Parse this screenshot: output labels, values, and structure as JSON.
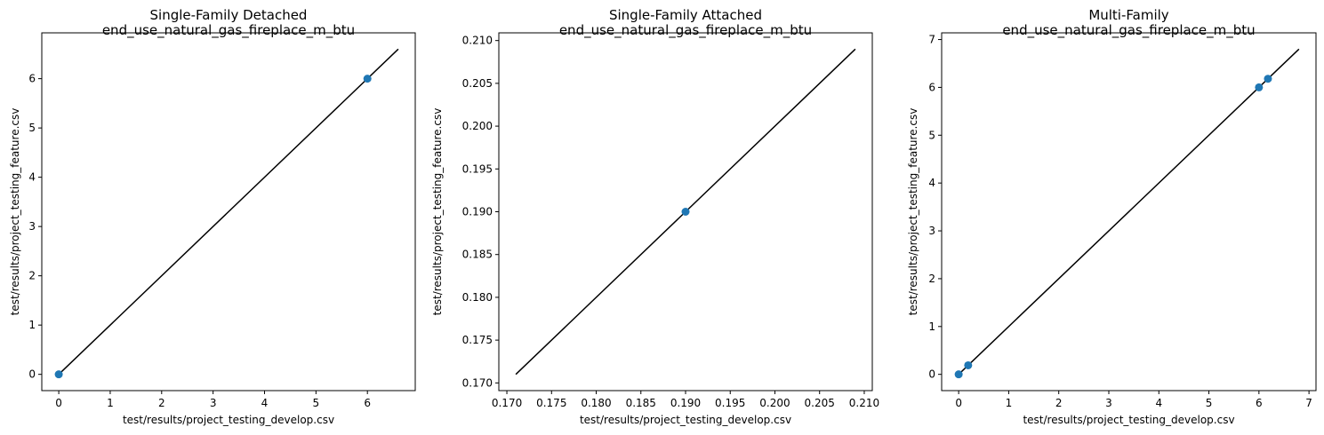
{
  "chart_data": [
    {
      "type": "scatter",
      "title": "Single-Family Detached\nend_use_natural_gas_fireplace_m_btu",
      "xlabel": "test/results/project_testing_develop.csv",
      "ylabel": "test/results/project_testing_feature.csv",
      "xlim": [
        -0.33,
        6.93
      ],
      "ylim": [
        -0.33,
        6.93
      ],
      "xticks": [
        0,
        1,
        2,
        3,
        4,
        5,
        6
      ],
      "yticks": [
        0,
        1,
        2,
        3,
        4,
        5,
        6
      ],
      "tick_decimals": 0,
      "grid": false,
      "points": {
        "x": [
          0,
          6
        ],
        "y": [
          0,
          6
        ]
      },
      "reference_line": {
        "x": [
          0,
          6.6
        ],
        "y": [
          0,
          6.6
        ]
      }
    },
    {
      "type": "scatter",
      "title": "Single-Family Attached\nend_use_natural_gas_fireplace_m_btu",
      "xlabel": "test/results/project_testing_develop.csv",
      "ylabel": "test/results/project_testing_feature.csv",
      "xlim": [
        0.1691,
        0.2109
      ],
      "ylim": [
        0.1691,
        0.2109
      ],
      "xticks": [
        0.17,
        0.175,
        0.18,
        0.185,
        0.19,
        0.195,
        0.2,
        0.205,
        0.21
      ],
      "yticks": [
        0.17,
        0.175,
        0.18,
        0.185,
        0.19,
        0.195,
        0.2,
        0.205,
        0.21
      ],
      "tick_decimals": 3,
      "grid": false,
      "points": {
        "x": [
          0.19
        ],
        "y": [
          0.19
        ]
      },
      "reference_line": {
        "x": [
          0.171,
          0.209
        ],
        "y": [
          0.171,
          0.209
        ]
      }
    },
    {
      "type": "scatter",
      "title": "Multi-Family\nend_use_natural_gas_fireplace_m_btu",
      "xlabel": "test/results/project_testing_develop.csv",
      "ylabel": "test/results/project_testing_feature.csv",
      "xlim": [
        -0.34,
        7.14
      ],
      "ylim": [
        -0.34,
        7.14
      ],
      "xticks": [
        0,
        1,
        2,
        3,
        4,
        5,
        6,
        7
      ],
      "yticks": [
        0,
        1,
        2,
        3,
        4,
        5,
        6,
        7
      ],
      "tick_decimals": 0,
      "grid": false,
      "points": {
        "x": [
          0,
          0.19,
          6.0,
          6.18
        ],
        "y": [
          0,
          0.19,
          6.0,
          6.18
        ]
      },
      "reference_line": {
        "x": [
          0,
          6.8
        ],
        "y": [
          0,
          6.8
        ]
      }
    }
  ],
  "colors": {
    "marker": "#1f77b4",
    "line": "#000000",
    "axes": "#000000"
  }
}
